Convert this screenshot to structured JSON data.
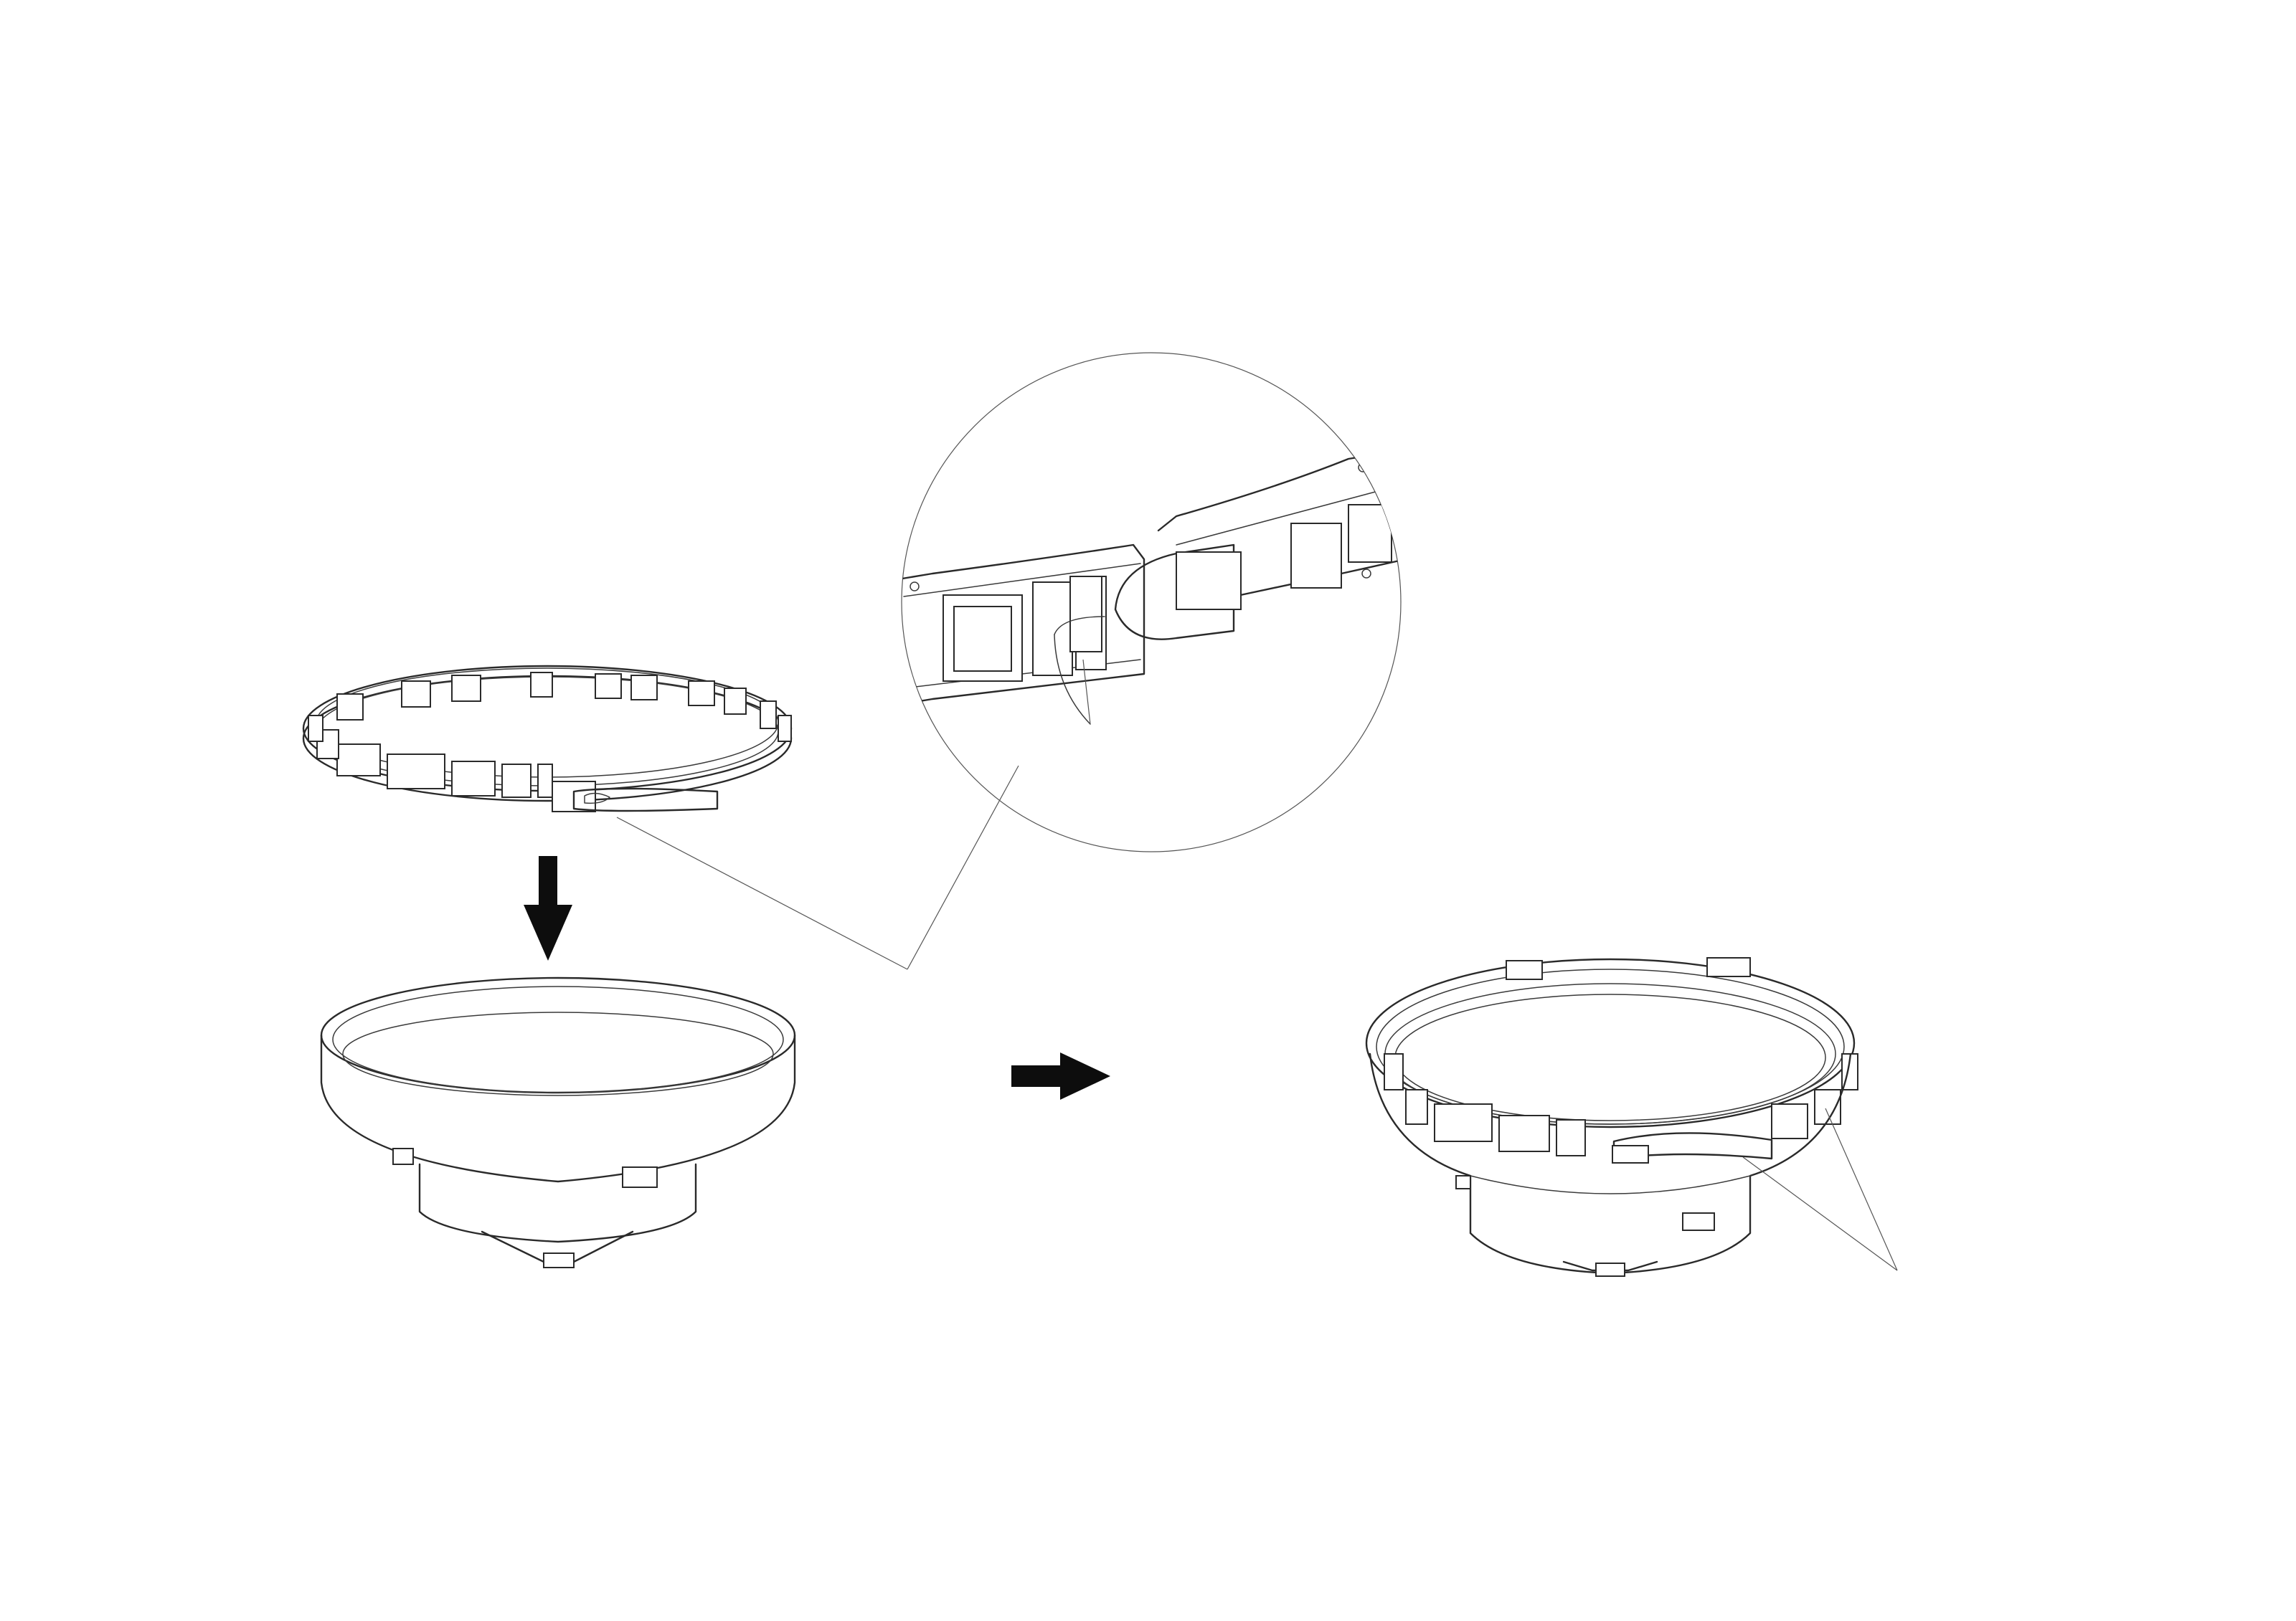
{
  "diagram": {
    "description_free": true,
    "steps": [
      "ring-above-base",
      "assembled-ring-on-base"
    ],
    "parts": {
      "clamp_ring": "clamp-ring",
      "base_cone": "conical-base",
      "latch_detail": "latch-detail-callout"
    },
    "icons": {
      "down_arrow": "down-arrow-icon",
      "right_arrow": "right-arrow-icon"
    },
    "colors": {
      "line": "#2a2a2a",
      "arrow": "#0d0d0d",
      "background": "#ffffff"
    }
  }
}
